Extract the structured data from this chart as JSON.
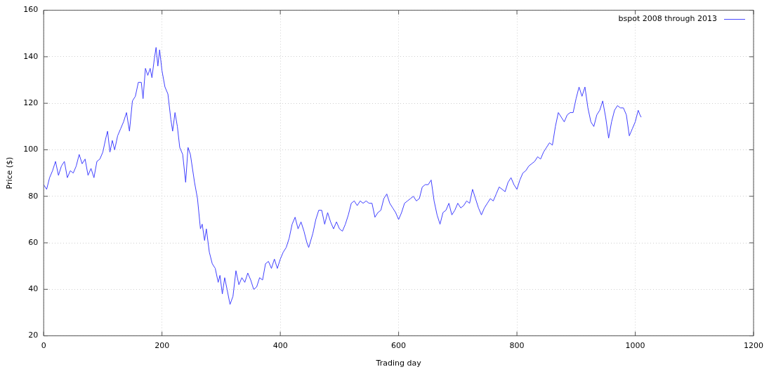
{
  "chart_data": {
    "type": "line",
    "xlabel": "Trading day",
    "ylabel": "Price ($)",
    "xlim": [
      0,
      1200
    ],
    "xticks": [
      0,
      200,
      400,
      600,
      800,
      1000,
      1200
    ],
    "ylim": [
      20,
      160
    ],
    "yticks": [
      20,
      40,
      60,
      80,
      100,
      120,
      140,
      160
    ],
    "grid": true,
    "legend": "top right",
    "marker": "none",
    "line_style": "solid",
    "x": [
      0,
      5,
      10,
      15,
      20,
      25,
      30,
      35,
      40,
      45,
      50,
      55,
      60,
      65,
      70,
      75,
      80,
      85,
      90,
      95,
      100,
      105,
      108,
      112,
      116,
      120,
      125,
      130,
      135,
      140,
      145,
      150,
      155,
      160,
      165,
      168,
      172,
      176,
      180,
      183,
      187,
      190,
      193,
      196,
      200,
      205,
      210,
      215,
      218,
      222,
      226,
      230,
      235,
      240,
      244,
      248,
      255,
      260,
      265,
      268,
      272,
      275,
      280,
      285,
      290,
      295,
      298,
      302,
      306,
      310,
      315,
      320,
      325,
      330,
      335,
      340,
      345,
      350,
      355,
      360,
      365,
      370,
      375,
      380,
      385,
      390,
      395,
      400,
      405,
      410,
      415,
      420,
      425,
      430,
      435,
      440,
      445,
      448,
      455,
      460,
      465,
      470,
      475,
      480,
      485,
      490,
      495,
      500,
      505,
      510,
      515,
      520,
      525,
      530,
      535,
      540,
      545,
      550,
      555,
      560,
      565,
      570,
      575,
      580,
      585,
      590,
      595,
      600,
      605,
      610,
      615,
      620,
      625,
      630,
      635,
      640,
      645,
      650,
      655,
      660,
      665,
      670,
      675,
      680,
      685,
      690,
      695,
      700,
      705,
      710,
      715,
      720,
      725,
      730,
      735,
      740,
      745,
      750,
      755,
      760,
      765,
      770,
      775,
      780,
      785,
      790,
      795,
      800,
      805,
      810,
      815,
      820,
      825,
      830,
      835,
      840,
      845,
      850,
      855,
      860,
      865,
      870,
      875,
      880,
      885,
      890,
      895,
      900,
      905,
      910,
      915,
      920,
      925,
      930,
      935,
      940,
      945,
      950,
      955,
      960,
      965,
      970,
      975,
      980,
      985,
      990,
      995,
      1000,
      1005,
      1008,
      1010
    ],
    "series": [
      {
        "name": "bspot 2008 through 2013",
        "color": "#4040ff",
        "values": [
          85,
          83,
          88,
          91,
          95,
          89,
          93,
          95,
          88,
          91,
          90,
          93,
          98,
          94,
          96,
          89,
          92,
          88,
          95,
          96,
          99,
          105,
          108,
          99,
          104,
          100,
          106,
          109,
          112,
          116,
          108,
          121,
          123,
          129,
          129,
          122,
          135,
          132,
          135,
          131,
          139,
          144,
          136,
          143,
          134,
          127,
          124,
          113,
          108,
          116,
          110,
          101,
          98,
          86,
          101,
          98,
          86,
          79,
          66,
          68,
          61,
          66,
          56,
          51,
          49,
          43,
          46,
          38,
          45,
          40,
          33.5,
          37,
          48,
          42,
          45,
          43,
          47,
          44,
          40,
          41,
          45,
          44,
          51,
          52,
          49,
          53,
          49,
          53,
          56,
          58,
          62,
          68,
          71,
          66,
          69,
          65,
          60,
          58,
          64,
          70,
          74,
          74,
          68,
          73,
          69,
          66,
          69,
          66,
          65,
          68,
          72,
          77,
          78,
          76,
          78,
          77,
          78,
          77,
          77,
          71,
          73,
          74,
          79,
          81,
          77,
          75,
          73,
          70,
          73,
          77,
          78,
          79,
          80,
          78,
          79,
          84,
          85,
          85,
          87,
          78,
          72,
          68,
          73,
          74,
          77,
          72,
          74,
          77,
          75,
          76,
          78,
          77,
          83,
          79,
          75,
          72,
          75,
          77,
          79,
          78,
          81,
          84,
          83,
          82,
          86,
          88,
          85,
          83,
          87,
          90,
          91,
          93,
          94,
          95,
          97,
          96,
          99,
          101,
          103,
          102,
          110,
          116,
          114,
          112,
          115,
          116,
          116,
          122,
          127,
          123,
          127,
          118,
          112,
          110,
          115,
          117,
          121,
          114,
          105,
          112,
          117,
          119,
          118,
          118,
          115,
          106,
          109,
          112,
          117,
          115,
          114
        ]
      }
    ]
  }
}
